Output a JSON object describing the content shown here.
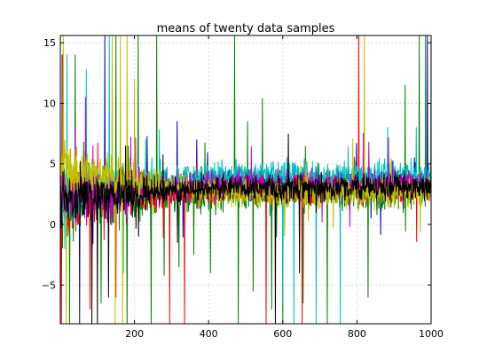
{
  "chart_data": {
    "type": "line",
    "title": "means of twenty data samples",
    "xlabel": "",
    "ylabel": "",
    "xlim": [
      0,
      1000
    ],
    "ylim": [
      -8.2,
      15.6
    ],
    "grid": true,
    "x_ticks": [
      200,
      400,
      600,
      800,
      1000
    ],
    "y_ticks": [
      -5,
      0,
      5,
      10,
      15
    ],
    "x_tick_labels": [
      "200",
      "400",
      "600",
      "800",
      "1000"
    ],
    "y_tick_labels": [
      "−5",
      "0",
      "5",
      "10",
      "15"
    ],
    "x_samples": 1000,
    "series": [
      {
        "color": "#0000bf",
        "level_early": 2.0,
        "level_late": 3.5,
        "noise": 0.45,
        "spikes": [
          [
            5,
            14
          ],
          [
            52,
            -8.2
          ],
          [
            120,
            15.6
          ],
          [
            315,
            8.5
          ],
          [
            955,
            5.5
          ],
          [
            990,
            15.6
          ]
        ]
      },
      {
        "color": "#008000",
        "level_early": 2.3,
        "level_late": 2.7,
        "noise": 0.75,
        "spikes": [
          [
            25,
            -8.2
          ],
          [
            40,
            14
          ],
          [
            63,
            6.8
          ],
          [
            110,
            -6.5
          ],
          [
            150,
            15.6
          ],
          [
            180,
            -8.2
          ],
          [
            210,
            15.6
          ],
          [
            245,
            -8.2
          ],
          [
            260,
            15.6
          ],
          [
            280,
            -4.2
          ],
          [
            320,
            -3.5
          ],
          [
            360,
            -2.5
          ],
          [
            405,
            -4
          ],
          [
            470,
            15.6
          ],
          [
            480,
            -8.2
          ],
          [
            505,
            8.5
          ],
          [
            520,
            -5.5
          ],
          [
            545,
            10.4
          ],
          [
            570,
            -7
          ],
          [
            600,
            -8.2
          ],
          [
            655,
            -6.5
          ],
          [
            720,
            -8.2
          ],
          [
            830,
            -6
          ],
          [
            930,
            11.5
          ],
          [
            968,
            15.6
          ],
          [
            985,
            15.6
          ],
          [
            1000,
            14
          ]
        ]
      },
      {
        "color": "#ff0000",
        "level_early": 2.2,
        "level_late": 3.0,
        "noise": 0.6,
        "spikes": [
          [
            3,
            -8.2
          ],
          [
            6,
            14
          ],
          [
            80,
            -7
          ],
          [
            150,
            -6
          ],
          [
            295,
            -8.2
          ],
          [
            335,
            -8.2
          ],
          [
            555,
            -8.2
          ],
          [
            652,
            -8.2
          ],
          [
            805,
            15.6
          ]
        ]
      },
      {
        "color": "#00bfbf",
        "level_early": 2.5,
        "level_late": 4.0,
        "noise": 0.6,
        "spikes": [
          [
            12,
            -2
          ],
          [
            18,
            14
          ],
          [
            70,
            12.8
          ],
          [
            132,
            15.6
          ],
          [
            170,
            -4
          ],
          [
            600,
            -6.5
          ],
          [
            630,
            -8.2
          ],
          [
            690,
            -8.2
          ],
          [
            755,
            -8.2
          ],
          [
            960,
            8
          ]
        ]
      },
      {
        "color": "#bf00bf",
        "level_early": 2.2,
        "level_late": 3.2,
        "noise": 0.6,
        "spikes": [
          [
            40,
            8
          ],
          [
            68,
            10.5
          ],
          [
            88,
            6.5
          ],
          [
            190,
            7.2
          ]
        ]
      },
      {
        "color": "#bfbf00",
        "level_early": 4.5,
        "level_late": 2.6,
        "noise": 0.55,
        "spikes": [
          [
            8,
            15.6
          ],
          [
            16,
            -8.2
          ],
          [
            140,
            15.6
          ],
          [
            148,
            -8.2
          ],
          [
            162,
            15.6
          ],
          [
            168,
            -8.2
          ],
          [
            180,
            15.6
          ],
          [
            820,
            15.6
          ],
          [
            200,
            12
          ]
        ]
      },
      {
        "color": "#000000",
        "level_early": 2.0,
        "level_late": 3.0,
        "noise": 0.5,
        "spikes": [
          [
            85,
            -8.2
          ],
          [
            100,
            -8.2
          ],
          [
            130,
            -6
          ],
          [
            580,
            -8.2
          ],
          [
            645,
            -4
          ],
          [
            690,
            1
          ]
        ]
      }
    ]
  }
}
